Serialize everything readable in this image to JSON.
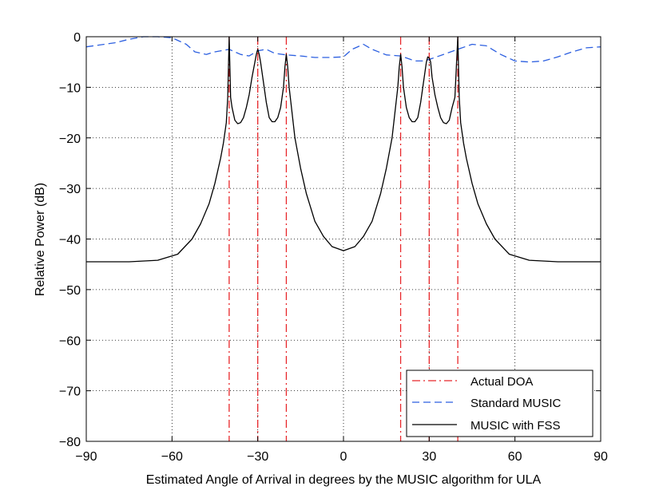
{
  "chart_data": {
    "type": "line",
    "title": "",
    "xlabel": "Estimated Angle of Arrival in degrees by the MUSIC algorithm for ULA",
    "ylabel": "Relative Power (dB)",
    "xlim": [
      -90,
      90
    ],
    "ylim": [
      -80,
      0
    ],
    "grid": true,
    "legend_position": "bottom-right",
    "xticks": [
      -90,
      -60,
      -30,
      0,
      30,
      60,
      90
    ],
    "xtick_labels": [
      "−90",
      "−60",
      "−30",
      "0",
      "30",
      "60",
      "90"
    ],
    "yticks": [
      0,
      -10,
      -20,
      -30,
      -40,
      -50,
      -60,
      -70,
      -80
    ],
    "ytick_labels": [
      "0",
      "−10",
      "−20",
      "−30",
      "−40",
      "−50",
      "−60",
      "−70",
      "−80"
    ],
    "actual_doa": [
      -40,
      -30,
      -20,
      20,
      30,
      40
    ],
    "series": [
      {
        "name": "Actual DOA",
        "style": "dash-dot",
        "color": "#e8262a"
      },
      {
        "name": "Standard MUSIC",
        "style": "dashed",
        "color": "#2c5fe0",
        "x": [
          -90,
          -80,
          -75,
          -70,
          -65,
          -60,
          -55,
          -52,
          -48,
          -45,
          -40,
          -36,
          -33,
          -30,
          -27,
          -24,
          -20,
          -15,
          -10,
          -5,
          0,
          3,
          7,
          10,
          15,
          20,
          25,
          28,
          30,
          35,
          40,
          45,
          50,
          55,
          60,
          65,
          70,
          75,
          80,
          85,
          90
        ],
        "y": [
          -2,
          -1.2,
          -0.5,
          0,
          0,
          -0.2,
          -1.5,
          -3,
          -3.5,
          -3,
          -2.5,
          -3.5,
          -3.8,
          -2.8,
          -2.5,
          -3.3,
          -3.6,
          -3.8,
          -4.1,
          -4.1,
          -4,
          -2.5,
          -1.5,
          -2.5,
          -3.6,
          -3.8,
          -4.8,
          -4.8,
          -4.5,
          -3.5,
          -2.5,
          -1.5,
          -1.8,
          -3.5,
          -4.8,
          -5,
          -4.8,
          -4,
          -3,
          -2.2,
          -2
        ]
      },
      {
        "name": "MUSIC with FSS",
        "style": "solid",
        "color": "#000000",
        "x": [
          -90,
          -75,
          -65,
          -58,
          -53,
          -50,
          -47,
          -45,
          -43,
          -42,
          -41,
          -40.5,
          -40,
          -39.5,
          -39,
          -38,
          -37,
          -36,
          -35,
          -34,
          -33,
          -32,
          -31,
          -30.5,
          -30,
          -29.5,
          -29,
          -28,
          -27,
          -26,
          -25,
          -24,
          -23,
          -22,
          -21,
          -20.5,
          -20,
          -19.5,
          -19,
          -18,
          -17,
          -15,
          -13,
          -10,
          -7,
          -4,
          0,
          4,
          7,
          10,
          13,
          15,
          17,
          18,
          19,
          19.5,
          20,
          20.5,
          21,
          22,
          23,
          24,
          25,
          26,
          27,
          28,
          29,
          29.5,
          30,
          30.5,
          31,
          32,
          33,
          34,
          35,
          36,
          37,
          38,
          39,
          39.5,
          40,
          40.5,
          41,
          42,
          43,
          45,
          47,
          50,
          53,
          58,
          65,
          75,
          90
        ],
        "y": [
          -44.5,
          -44.5,
          -44.2,
          -43,
          -40,
          -37,
          -33,
          -29,
          -24,
          -21,
          -17,
          -12,
          0,
          -12,
          -14,
          -16.5,
          -17.2,
          -17,
          -16,
          -14,
          -11.5,
          -8,
          -5,
          -3.5,
          -2.5,
          -3.5,
          -5,
          -9,
          -13,
          -16,
          -16.8,
          -16.8,
          -16,
          -14,
          -10,
          -6,
          -3.5,
          -6,
          -10,
          -15,
          -20,
          -26,
          -31,
          -36.5,
          -39.5,
          -41.5,
          -42.3,
          -41.5,
          -39.5,
          -36.5,
          -31,
          -26,
          -20,
          -15,
          -10,
          -6,
          -3.5,
          -6,
          -10,
          -14,
          -16,
          -16.8,
          -16.8,
          -16,
          -13,
          -9,
          -5,
          -4,
          -4.2,
          -5,
          -8,
          -11.5,
          -14,
          -16,
          -17,
          -17.2,
          -16.5,
          -14,
          -12,
          -6,
          0,
          -12,
          -17,
          -21,
          -24,
          -29,
          -33,
          -37,
          -40,
          -43,
          -44.2,
          -44.5,
          -44.5
        ]
      }
    ]
  }
}
